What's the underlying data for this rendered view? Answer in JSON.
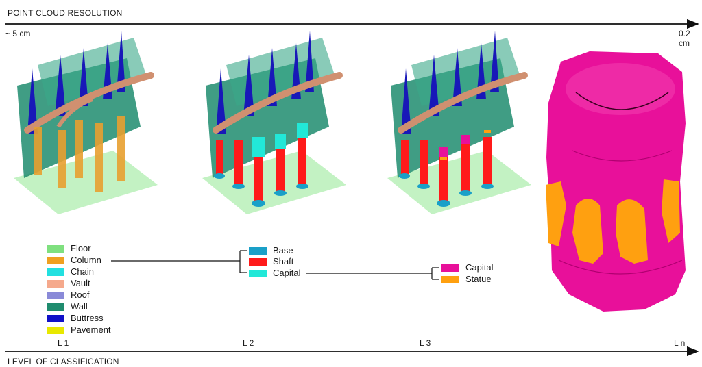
{
  "resolution_axis": {
    "title": "POINT CLOUD RESOLUTION",
    "start_label": "~ 5 cm",
    "end_label": "0.2 cm"
  },
  "classification_axis": {
    "title": "LEVEL OF CLASSIFICATION"
  },
  "levels": [
    "L 1",
    "L 2",
    "L 3",
    "L n"
  ],
  "legend_l1": [
    {
      "label": "Floor",
      "color": "#7fe07f"
    },
    {
      "label": "Column",
      "color": "#f0a020"
    },
    {
      "label": "Chain",
      "color": "#22e0e0"
    },
    {
      "label": "Vault",
      "color": "#f5a98c"
    },
    {
      "label": "Roof",
      "color": "#8a8ad8"
    },
    {
      "label": "Wall",
      "color": "#1f8c6e"
    },
    {
      "label": "Buttress",
      "color": "#1010c8"
    },
    {
      "label": "Pavement",
      "color": "#e8e800"
    }
  ],
  "legend_l2": [
    {
      "label": "Base",
      "color": "#1aa0c8"
    },
    {
      "label": "Shaft",
      "color": "#ff1a1a"
    },
    {
      "label": "Capital",
      "color": "#22e8d8"
    }
  ],
  "legend_l3": [
    {
      "label": "Capital",
      "color": "#e8109a"
    },
    {
      "label": "Statue",
      "color": "#ffa010"
    }
  ],
  "colors": {
    "floor": "#b8f0b8",
    "wall": "#1f8c6e",
    "buttress": "#1818b8",
    "vault": "#d09070",
    "column": "#e8a030",
    "shaft": "#ff1a1a",
    "base": "#1aa0c8",
    "capital": "#22e8d8",
    "capital_l3": "#e8109a",
    "statue": "#ffa010",
    "pavement": "#e8e800"
  }
}
